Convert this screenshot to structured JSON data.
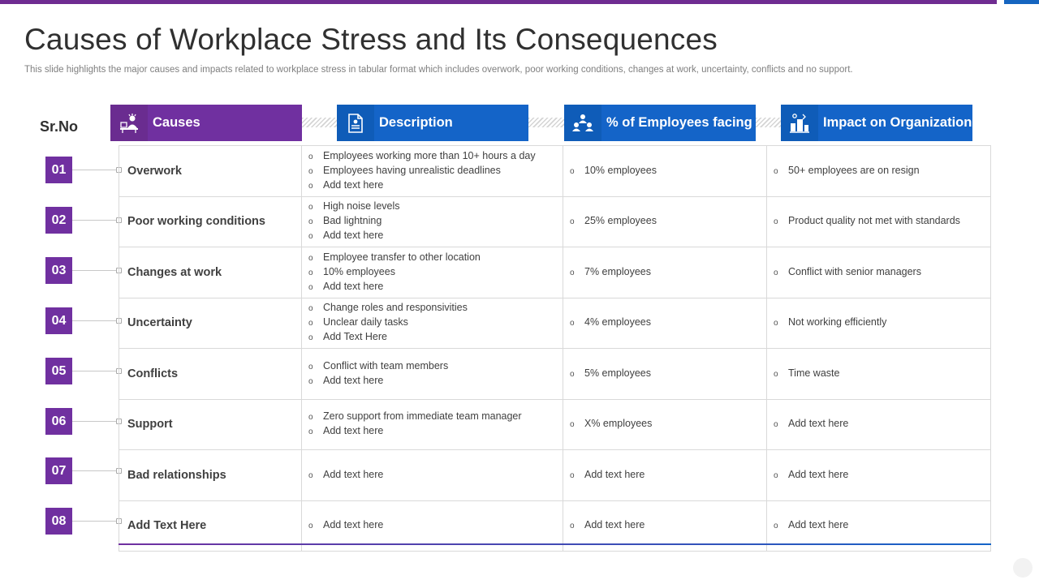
{
  "title": "Causes of Workplace Stress and Its Consequences",
  "subtitle": "This slide highlights the major causes and impacts related to workplace stress in tabular format which includes overwork, poor working conditions, changes at work, uncertainty, conflicts and no support.",
  "sr_no_label": "Sr.No",
  "headers": {
    "causes": {
      "label": "Causes",
      "icon": "stressed-person-icon"
    },
    "description": {
      "label": "Description",
      "icon": "document-icon"
    },
    "employees": {
      "label": "% of Employees facing",
      "icon": "team-icon"
    },
    "impact": {
      "label": "Impact on Organization",
      "icon": "organization-icon"
    }
  },
  "colors": {
    "purple": "#7030a0",
    "blue": "#1464c8"
  },
  "rows": [
    {
      "num": "01",
      "cause": "Overwork",
      "description": [
        "Employees working  more than 10+ hours a day",
        "Employees having  unrealistic deadlines",
        "Add text here"
      ],
      "employees": "10% employees",
      "impact": "50+ employees are on resign"
    },
    {
      "num": "02",
      "cause": "Poor working conditions",
      "description": [
        "High noise levels",
        "Bad lightning",
        "Add text here"
      ],
      "employees": "25% employees",
      "impact": "Product quality not met with standards"
    },
    {
      "num": "03",
      "cause": "Changes at work",
      "description": [
        "Employee transfer to other location",
        "10% employees",
        "Add text here"
      ],
      "employees": "7% employees",
      "impact": "Conflict with senior managers"
    },
    {
      "num": "04",
      "cause": "Uncertainty",
      "description": [
        "Change roles and responsivities",
        "Unclear daily tasks",
        "Add Text Here"
      ],
      "employees": "4% employees",
      "impact": "Not working  efficiently"
    },
    {
      "num": "05",
      "cause": "Conflicts",
      "description": [
        "Conflict with team members",
        "Add text here"
      ],
      "employees": "5% employees",
      "impact": "Time waste"
    },
    {
      "num": "06",
      "cause": "Support",
      "description": [
        "Zero support from immediate team manager",
        "Add text here"
      ],
      "employees": "X% employees",
      "impact": "Add text here"
    },
    {
      "num": "07",
      "cause": "Bad relationships",
      "description": [
        "Add text here"
      ],
      "employees": "Add text here",
      "impact": "Add text here"
    },
    {
      "num": "08",
      "cause": "Add  Text Here",
      "description": [
        "Add text here"
      ],
      "employees": "Add text here",
      "impact": "Add text here"
    }
  ]
}
